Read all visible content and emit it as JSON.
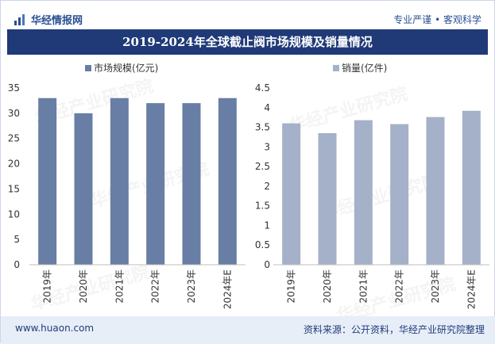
{
  "header": {
    "brand": "华经情报网",
    "tagline": "专业严谨 • 客观科学",
    "title": "2019-2024年全球截止阀市场规模及销量情况"
  },
  "footer": {
    "website": "www.huaon.com",
    "source": "资料来源：公开资料，华经产业研究院整理"
  },
  "watermark": {
    "text": "华经产业研究院"
  },
  "colors": {
    "left_bars": "#697ea4",
    "right_bars": "#a4b1c9",
    "title_bg": "#203a78",
    "brand": "#2a4f93"
  },
  "chart_data": [
    {
      "type": "bar",
      "legend": "市场规模(亿元)",
      "categories": [
        "2019年",
        "2020年",
        "2021年",
        "2022年",
        "2023年",
        "2024年E"
      ],
      "values": [
        33,
        30,
        33,
        32,
        32,
        33
      ],
      "ylim": [
        0,
        35
      ],
      "yticks": [
        "0",
        "5",
        "10",
        "15",
        "20",
        "25",
        "30",
        "35"
      ],
      "legend_position": "top-left",
      "grid": false
    },
    {
      "type": "bar",
      "legend": "销量(亿件)",
      "categories": [
        "2019年",
        "2020年",
        "2021年",
        "2022年",
        "2023年",
        "2024年E"
      ],
      "values": [
        3.6,
        3.35,
        3.68,
        3.58,
        3.76,
        3.92
      ],
      "ylim": [
        0,
        4.5
      ],
      "yticks": [
        "0",
        "0.5",
        "1",
        "1.5",
        "2",
        "2.5",
        "3",
        "3.5",
        "4",
        "4.5"
      ],
      "legend_position": "top-left",
      "grid": false
    }
  ]
}
